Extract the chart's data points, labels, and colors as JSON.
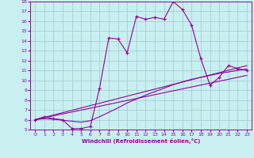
{
  "xlabel": "Windchill (Refroidissement éolien,°C)",
  "bg_color": "#c8f0f0",
  "line_color": "#990099",
  "grid_color": "#a0c8d0",
  "xlim": [
    -0.5,
    23.5
  ],
  "ylim": [
    5,
    18
  ],
  "yticks": [
    5,
    6,
    7,
    8,
    9,
    10,
    11,
    12,
    13,
    14,
    15,
    16,
    17,
    18
  ],
  "xticks": [
    0,
    1,
    2,
    3,
    4,
    5,
    6,
    7,
    8,
    9,
    10,
    11,
    12,
    13,
    14,
    15,
    16,
    17,
    18,
    19,
    20,
    21,
    22,
    23
  ],
  "line1_x": [
    0,
    1,
    2,
    3,
    4,
    5,
    6,
    7,
    8,
    9,
    10,
    11,
    12,
    13,
    14,
    15,
    16,
    17,
    18,
    19,
    20,
    21,
    22,
    23
  ],
  "line1_y": [
    6.0,
    6.3,
    6.1,
    6.0,
    5.1,
    5.1,
    5.3,
    9.2,
    14.3,
    14.2,
    12.8,
    16.5,
    16.2,
    16.4,
    16.2,
    18.0,
    17.2,
    15.6,
    12.2,
    9.5,
    10.3,
    11.5,
    11.2,
    11.0
  ],
  "line2_x": [
    0,
    1,
    2,
    3,
    4,
    5,
    6,
    7,
    8,
    9,
    10,
    11,
    12,
    13,
    14,
    15,
    16,
    17,
    18,
    19,
    20,
    21,
    22,
    23
  ],
  "line2_y": [
    6.0,
    6.1,
    6.05,
    5.95,
    5.85,
    5.75,
    5.9,
    6.3,
    6.75,
    7.2,
    7.7,
    8.1,
    8.5,
    8.85,
    9.2,
    9.55,
    9.85,
    10.1,
    10.3,
    10.5,
    10.7,
    10.85,
    11.0,
    11.15
  ],
  "line3_x": [
    0,
    23
  ],
  "line3_y": [
    6.0,
    11.5
  ],
  "line4_x": [
    0,
    23
  ],
  "line4_y": [
    6.0,
    10.5
  ]
}
